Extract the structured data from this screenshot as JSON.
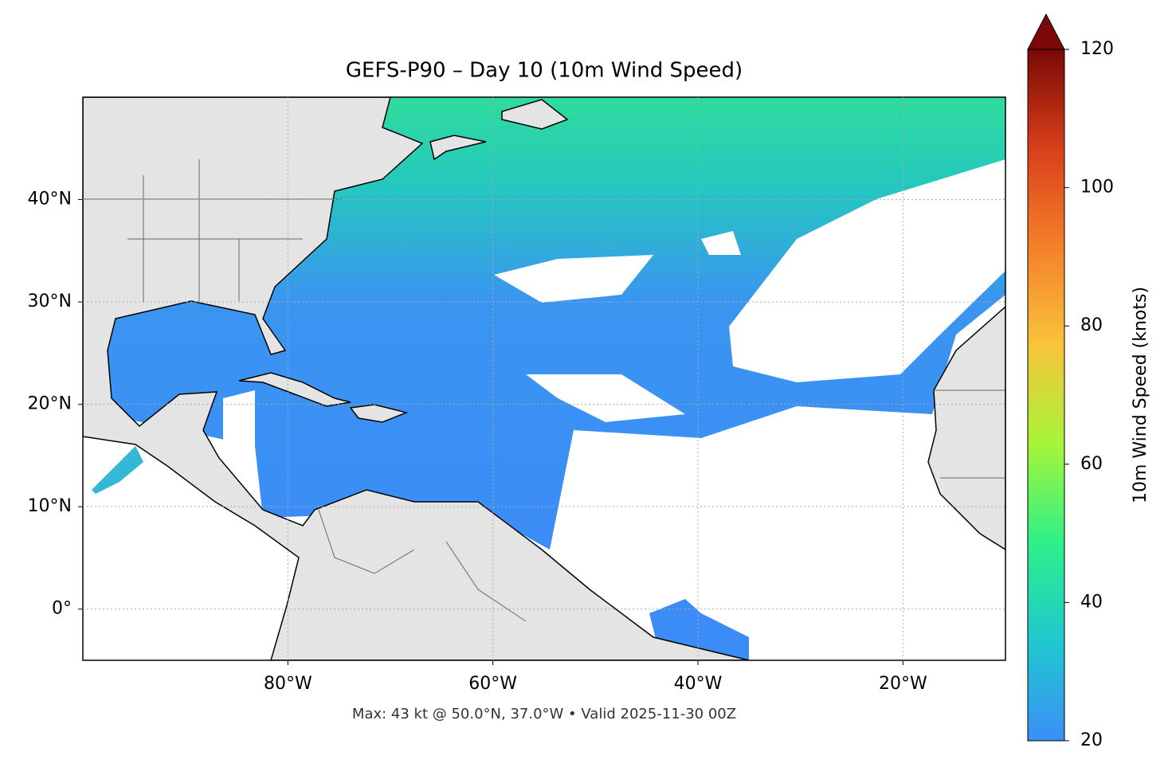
{
  "chart_data": {
    "type": "map",
    "title": "GEFS-P90 – Day 10 (10m Wind Speed)",
    "xlim": [
      -100,
      -10
    ],
    "ylim": [
      -5,
      50
    ],
    "xticks": [
      {
        "value": -80,
        "label": "80°W"
      },
      {
        "value": -60,
        "label": "60°W"
      },
      {
        "value": -40,
        "label": "40°W"
      },
      {
        "value": -20,
        "label": "20°W"
      }
    ],
    "yticks": [
      {
        "value": 0,
        "label": "0°"
      },
      {
        "value": 10,
        "label": "10°N"
      },
      {
        "value": 20,
        "label": "20°N"
      },
      {
        "value": 30,
        "label": "30°N"
      },
      {
        "value": 40,
        "label": "40°N"
      }
    ],
    "grid": true,
    "colorbar": {
      "label": "10m Wind Speed (knots)",
      "lim": [
        20,
        120
      ],
      "ticks": [
        20,
        40,
        60,
        80,
        100,
        120
      ],
      "colors": [
        "#3b8ff7",
        "#1fc8d0",
        "#2ef08a",
        "#a6f53a",
        "#f8c43a",
        "#f5802a",
        "#d8401a",
        "#7a0806"
      ]
    },
    "footer": "Max: 43 kt @ 50.0°N, 37.0°W • Valid 2025-11-30 00Z"
  }
}
